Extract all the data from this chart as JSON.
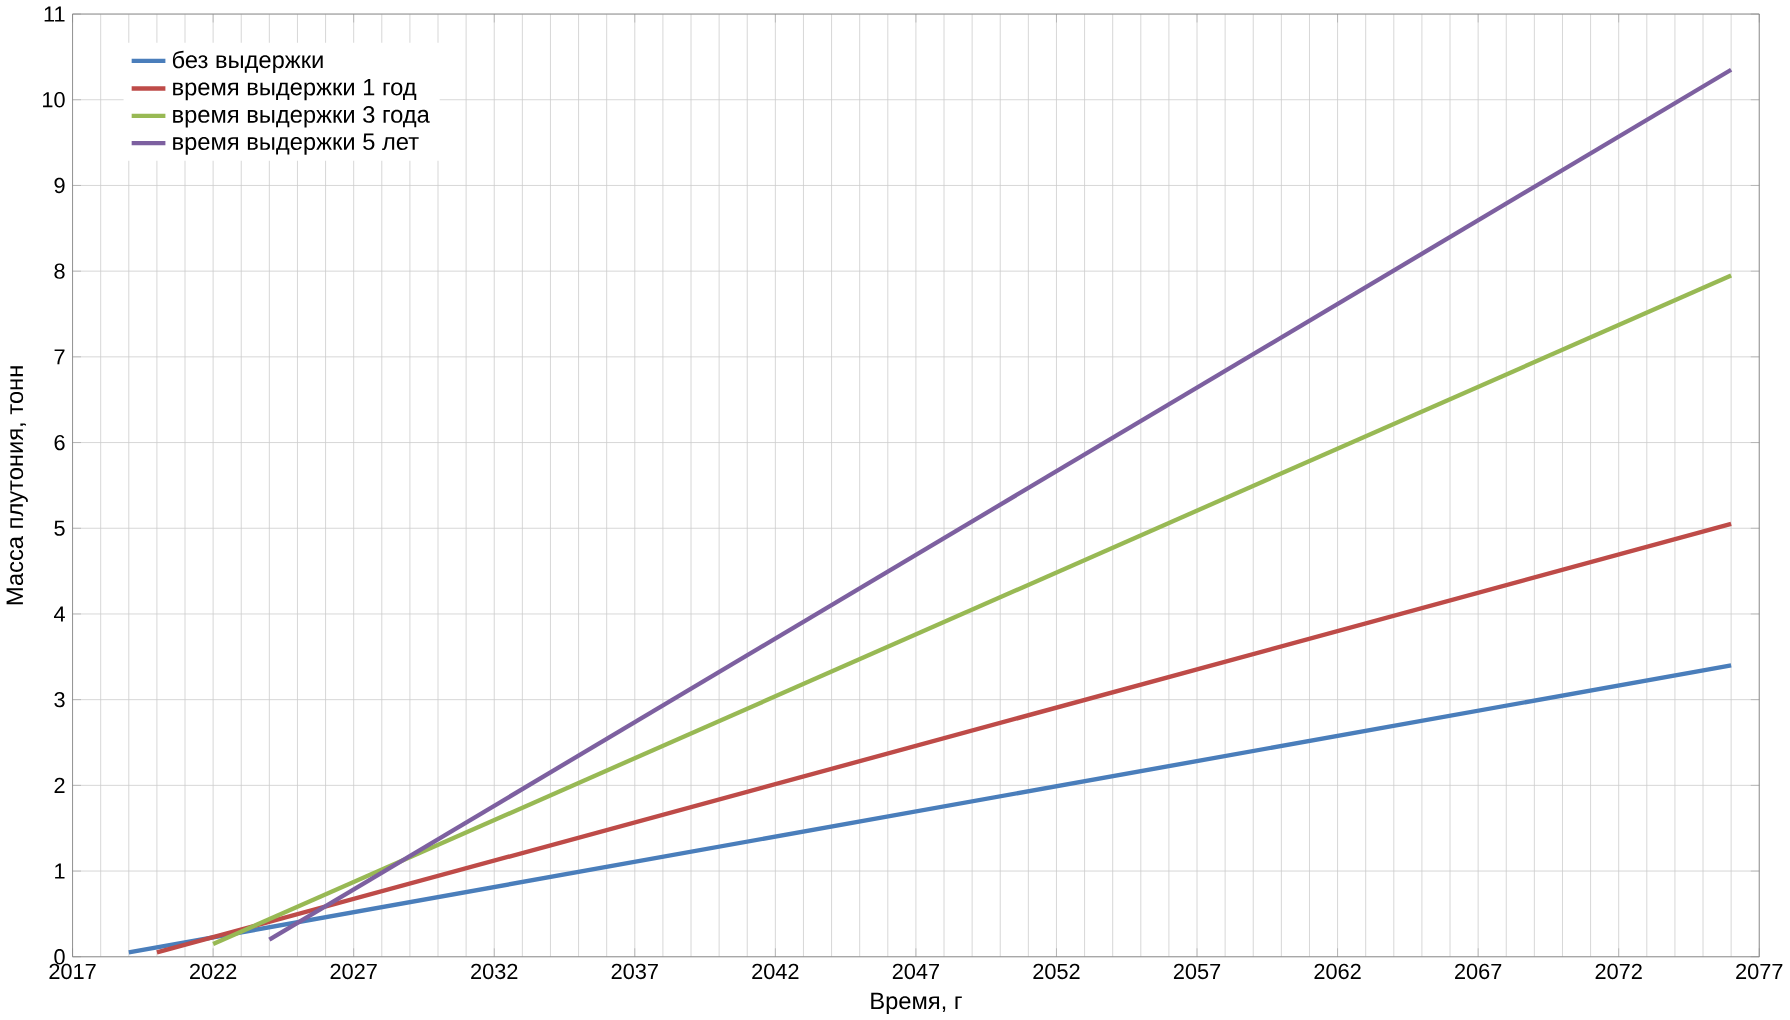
{
  "chart_data": {
    "type": "line",
    "xlabel": "Время, г",
    "ylabel": "Масса плутония, тонн",
    "series": [
      {
        "name": "без выдержки",
        "color": "#4a7ebb",
        "x": [
          2019,
          2076
        ],
        "values": [
          0.05,
          3.4
        ]
      },
      {
        "name": "время выдержки 1 год",
        "color": "#be4b48",
        "x": [
          2020,
          2076
        ],
        "values": [
          0.05,
          5.05
        ]
      },
      {
        "name": "время выдержки 3 года",
        "color": "#98b954",
        "x": [
          2022,
          2076
        ],
        "values": [
          0.15,
          7.95
        ]
      },
      {
        "name": "время выдержки 5 лет",
        "color": "#7d60a0",
        "x": [
          2024,
          2076
        ],
        "values": [
          0.2,
          10.35
        ]
      }
    ],
    "xlim": [
      2017,
      2077
    ],
    "xticks": [
      2017,
      2022,
      2027,
      2032,
      2037,
      2042,
      2047,
      2052,
      2057,
      2062,
      2067,
      2072,
      2077
    ],
    "ylim": [
      0,
      11
    ],
    "yticks": [
      0,
      1,
      2,
      3,
      4,
      5,
      6,
      7,
      8,
      9,
      10,
      11
    ],
    "grid": true,
    "legend": "top left",
    "marker": "none",
    "line_style": "solid"
  }
}
